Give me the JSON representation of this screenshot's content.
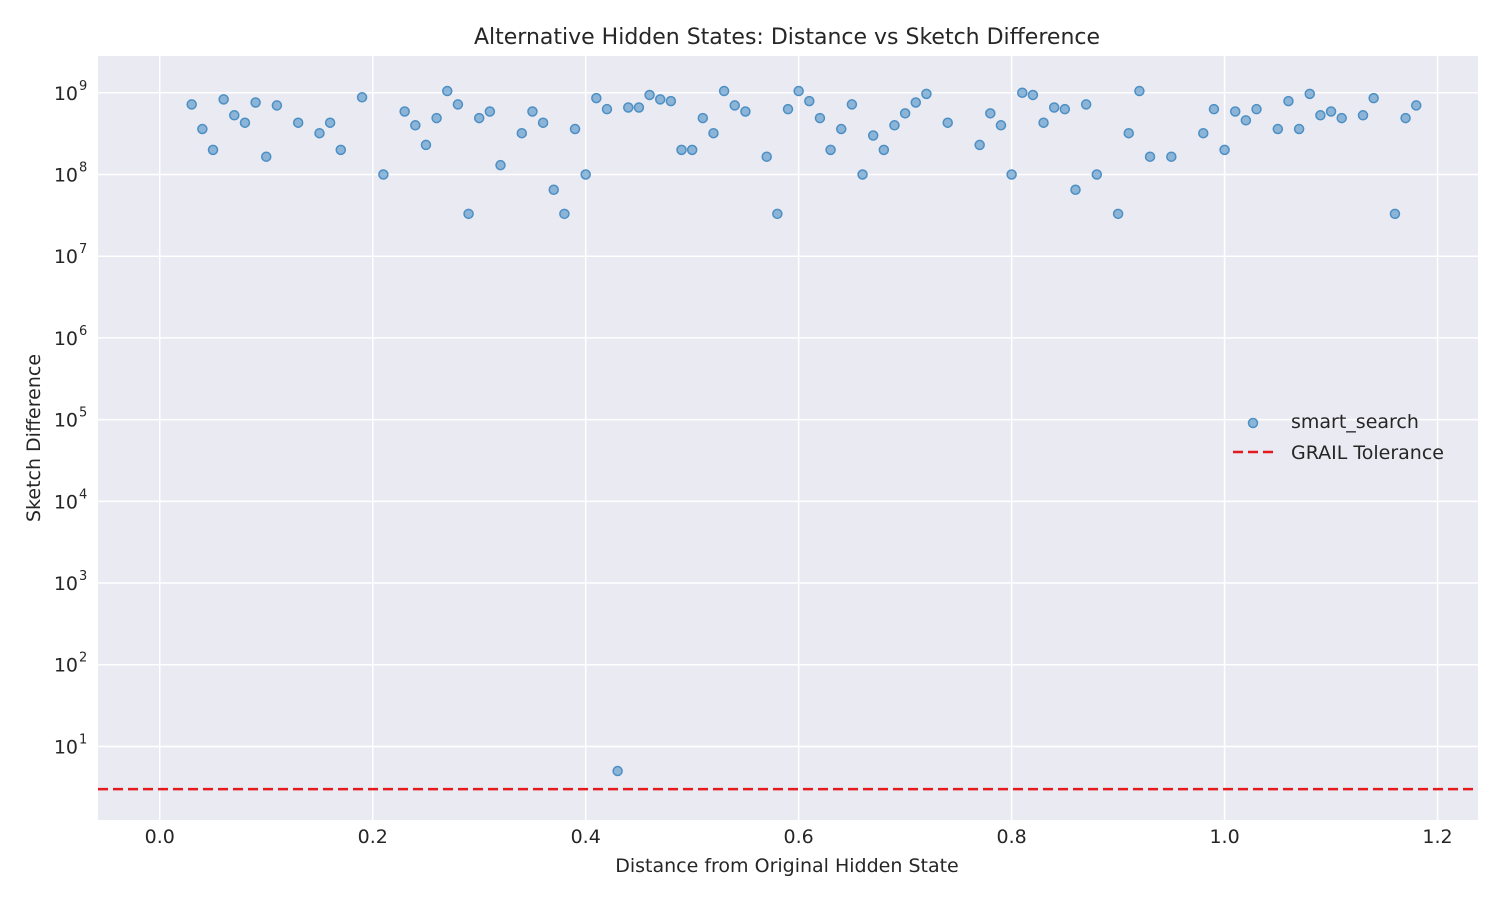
{
  "chart_data": {
    "type": "scatter",
    "title": "Alternative Hidden States: Distance vs Sketch Difference",
    "xlabel": "Distance from Original Hidden State",
    "ylabel": "Sketch Difference",
    "xlim": [
      -0.058,
      1.238
    ],
    "ylim_log10": [
      0.1,
      9.45
    ],
    "yscale": "log",
    "grid": true,
    "legend_position": "right",
    "x_ticks": [
      "0.0",
      "0.2",
      "0.4",
      "0.6",
      "0.8",
      "1.0",
      "1.2"
    ],
    "y_ticks": [
      {
        "base": "10",
        "exp": "1"
      },
      {
        "base": "10",
        "exp": "2"
      },
      {
        "base": "10",
        "exp": "3"
      },
      {
        "base": "10",
        "exp": "4"
      },
      {
        "base": "10",
        "exp": "5"
      },
      {
        "base": "10",
        "exp": "6"
      },
      {
        "base": "10",
        "exp": "7"
      },
      {
        "base": "10",
        "exp": "8"
      },
      {
        "base": "10",
        "exp": "9"
      }
    ],
    "series": [
      {
        "name": "smart_search",
        "kind": "scatter",
        "color": "#4c8fc4",
        "points": [
          [
            0.03,
            720000000.0
          ],
          [
            0.04,
            360000000.0
          ],
          [
            0.05,
            200000000.0
          ],
          [
            0.06,
            830000000.0
          ],
          [
            0.07,
            530000000.0
          ],
          [
            0.08,
            430000000.0
          ],
          [
            0.09,
            760000000.0
          ],
          [
            0.1,
            165000000.0
          ],
          [
            0.11,
            700000000.0
          ],
          [
            0.13,
            430000000.0
          ],
          [
            0.15,
            320000000.0
          ],
          [
            0.16,
            430000000.0
          ],
          [
            0.17,
            200000000.0
          ],
          [
            0.19,
            880000000.0
          ],
          [
            0.21,
            100000000.0
          ],
          [
            0.23,
            590000000.0
          ],
          [
            0.24,
            400000000.0
          ],
          [
            0.25,
            230000000.0
          ],
          [
            0.26,
            490000000.0
          ],
          [
            0.27,
            1050000000.0
          ],
          [
            0.28,
            720000000.0
          ],
          [
            0.29,
            33000000.0
          ],
          [
            0.3,
            490000000.0
          ],
          [
            0.31,
            590000000.0
          ],
          [
            0.32,
            130000000.0
          ],
          [
            0.34,
            320000000.0
          ],
          [
            0.35,
            590000000.0
          ],
          [
            0.36,
            430000000.0
          ],
          [
            0.37,
            65000000.0
          ],
          [
            0.38,
            33000000.0
          ],
          [
            0.39,
            360000000.0
          ],
          [
            0.4,
            100000000.0
          ],
          [
            0.41,
            860000000.0
          ],
          [
            0.42,
            630000000.0
          ],
          [
            0.43,
            5.0
          ],
          [
            0.44,
            660000000.0
          ],
          [
            0.45,
            660000000.0
          ],
          [
            0.46,
            940000000.0
          ],
          [
            0.47,
            830000000.0
          ],
          [
            0.48,
            790000000.0
          ],
          [
            0.49,
            200000000.0
          ],
          [
            0.5,
            200000000.0
          ],
          [
            0.51,
            490000000.0
          ],
          [
            0.52,
            320000000.0
          ],
          [
            0.53,
            1050000000.0
          ],
          [
            0.54,
            700000000.0
          ],
          [
            0.55,
            590000000.0
          ],
          [
            0.57,
            165000000.0
          ],
          [
            0.58,
            33000000.0
          ],
          [
            0.59,
            630000000.0
          ],
          [
            0.6,
            1050000000.0
          ],
          [
            0.61,
            790000000.0
          ],
          [
            0.62,
            490000000.0
          ],
          [
            0.63,
            200000000.0
          ],
          [
            0.64,
            360000000.0
          ],
          [
            0.65,
            720000000.0
          ],
          [
            0.66,
            100000000.0
          ],
          [
            0.67,
            300000000.0
          ],
          [
            0.68,
            200000000.0
          ],
          [
            0.69,
            400000000.0
          ],
          [
            0.7,
            560000000.0
          ],
          [
            0.71,
            760000000.0
          ],
          [
            0.72,
            970000000.0
          ],
          [
            0.74,
            430000000.0
          ],
          [
            0.77,
            230000000.0
          ],
          [
            0.78,
            560000000.0
          ],
          [
            0.79,
            400000000.0
          ],
          [
            0.8,
            100000000.0
          ],
          [
            0.81,
            1000000000.0
          ],
          [
            0.82,
            940000000.0
          ],
          [
            0.83,
            430000000.0
          ],
          [
            0.84,
            660000000.0
          ],
          [
            0.85,
            630000000.0
          ],
          [
            0.86,
            65000000.0
          ],
          [
            0.87,
            720000000.0
          ],
          [
            0.88,
            100000000.0
          ],
          [
            0.9,
            33000000.0
          ],
          [
            0.91,
            320000000.0
          ],
          [
            0.92,
            1050000000.0
          ],
          [
            0.93,
            165000000.0
          ],
          [
            0.95,
            165000000.0
          ],
          [
            0.98,
            320000000.0
          ],
          [
            0.99,
            630000000.0
          ],
          [
            1.0,
            200000000.0
          ],
          [
            1.01,
            590000000.0
          ],
          [
            1.02,
            460000000.0
          ],
          [
            1.03,
            630000000.0
          ],
          [
            1.05,
            360000000.0
          ],
          [
            1.06,
            790000000.0
          ],
          [
            1.07,
            360000000.0
          ],
          [
            1.08,
            970000000.0
          ],
          [
            1.09,
            530000000.0
          ],
          [
            1.1,
            590000000.0
          ],
          [
            1.11,
            490000000.0
          ],
          [
            1.13,
            530000000.0
          ],
          [
            1.14,
            860000000.0
          ],
          [
            1.16,
            33000000.0
          ],
          [
            1.17,
            490000000.0
          ],
          [
            1.18,
            700000000.0
          ]
        ]
      },
      {
        "name": "GRAIL Tolerance",
        "kind": "hline",
        "y": 3.0,
        "color": "#e41a1c",
        "dash": "dashed"
      }
    ]
  }
}
